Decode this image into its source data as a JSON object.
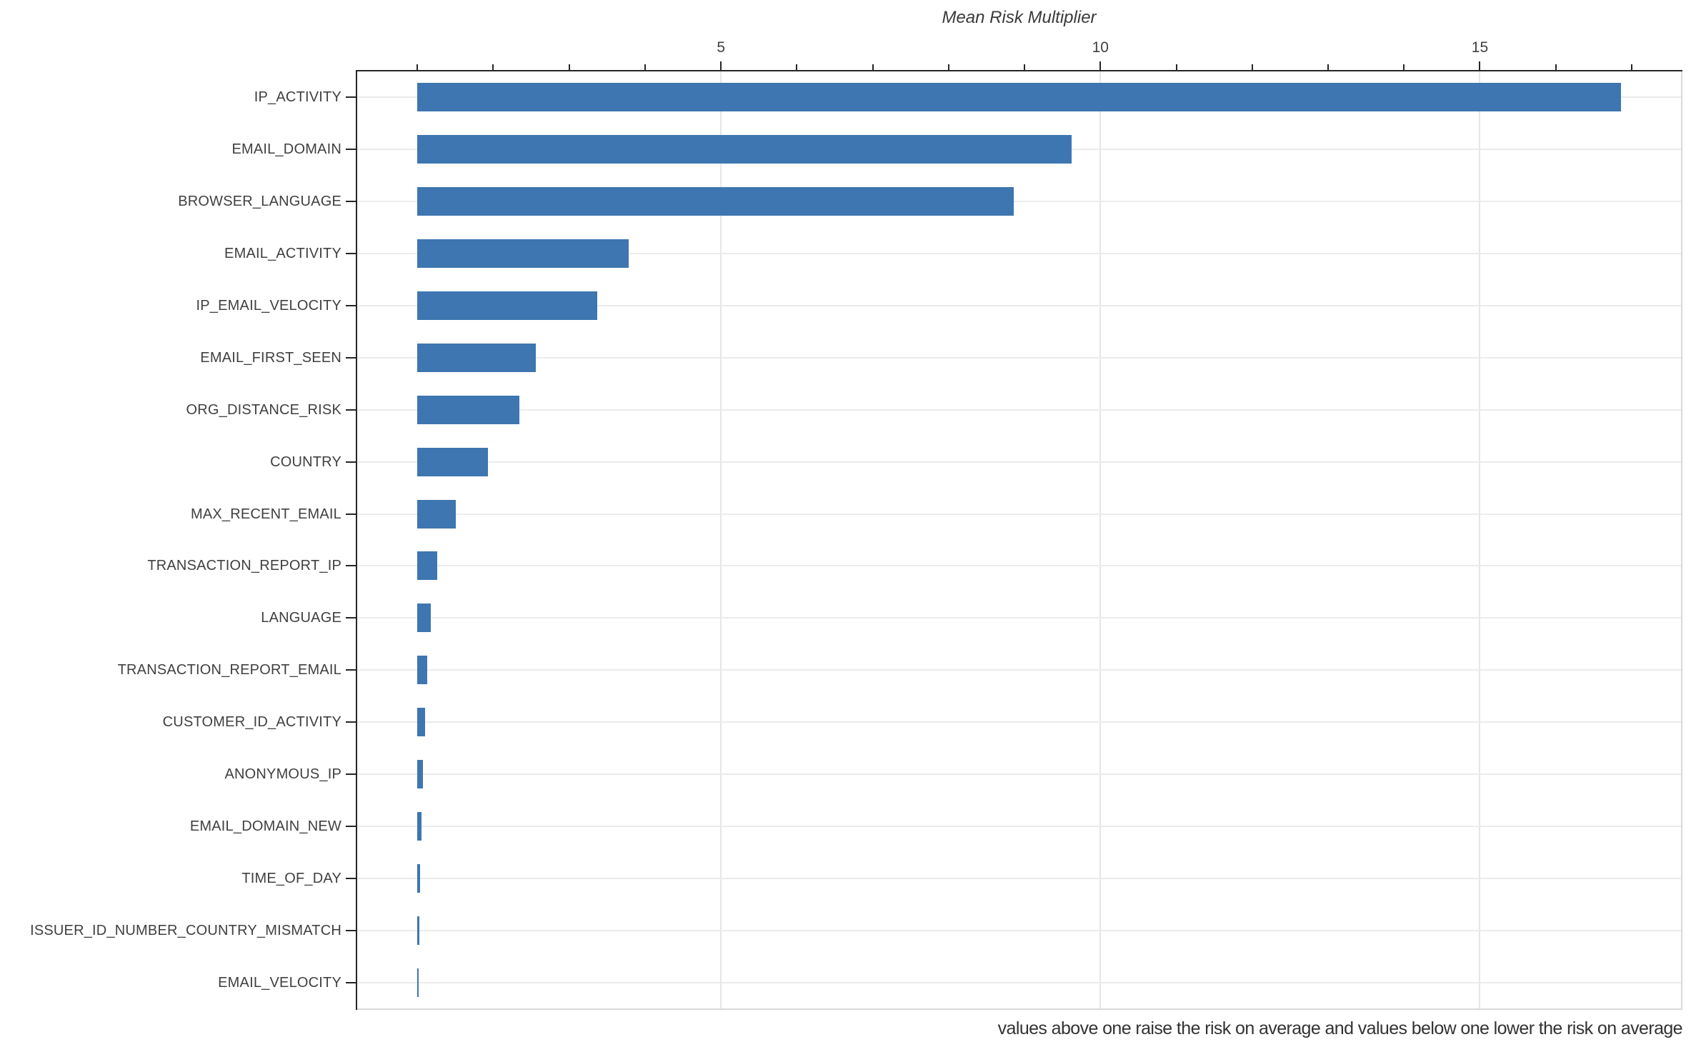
{
  "chart_data": {
    "type": "bar",
    "orientation": "horizontal",
    "title": "Mean Risk Multiplier",
    "caption": "values above one raise the risk on average and values below one lower the risk on average",
    "categories": [
      "IP_ACTIVITY",
      "EMAIL_DOMAIN",
      "BROWSER_LANGUAGE",
      "EMAIL_ACTIVITY",
      "IP_EMAIL_VELOCITY",
      "EMAIL_FIRST_SEEN",
      "ORG_DISTANCE_RISK",
      "COUNTRY",
      "MAX_RECENT_EMAIL",
      "TRANSACTION_REPORT_IP",
      "LANGUAGE",
      "TRANSACTION_REPORT_EMAIL",
      "CUSTOMER_ID_ACTIVITY",
      "ANONYMOUS_IP",
      "EMAIL_DOMAIN_NEW",
      "TIME_OF_DAY",
      "ISSUER_ID_NUMBER_COUNTRY_MISMATCH",
      "EMAIL_VELOCITY"
    ],
    "values": [
      16.86,
      9.62,
      8.86,
      3.78,
      3.37,
      2.56,
      2.34,
      1.93,
      1.51,
      1.26,
      1.18,
      1.13,
      1.1,
      1.07,
      1.05,
      1.04,
      1.03,
      1.02
    ],
    "bar_base": 1.0,
    "xlim": [
      0.207,
      17.65
    ],
    "x_major_ticks": [
      5,
      10,
      15
    ],
    "x_minor_tick_step": 1,
    "axis_side": "top",
    "grid": "major-x-and-category-rows",
    "colors": {
      "bar": "#3d76b0",
      "dark_spine": "#262626",
      "light_spine": "#d9d9d9",
      "grid_vertical": "#e6e6e6",
      "grid_horizontal": "#ebebeb",
      "tick_label": "#404040",
      "title": "#3a3a3a",
      "caption": "#333333",
      "background": "#ffffff"
    }
  }
}
